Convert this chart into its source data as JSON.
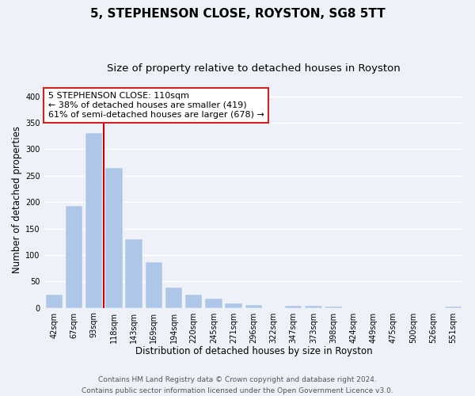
{
  "title": "5, STEPHENSON CLOSE, ROYSTON, SG8 5TT",
  "subtitle": "Size of property relative to detached houses in Royston",
  "xlabel": "Distribution of detached houses by size in Royston",
  "ylabel": "Number of detached properties",
  "bar_labels": [
    "42sqm",
    "67sqm",
    "93sqm",
    "118sqm",
    "143sqm",
    "169sqm",
    "194sqm",
    "220sqm",
    "245sqm",
    "271sqm",
    "296sqm",
    "322sqm",
    "347sqm",
    "373sqm",
    "398sqm",
    "424sqm",
    "449sqm",
    "475sqm",
    "500sqm",
    "526sqm",
    "551sqm"
  ],
  "bar_values": [
    25,
    193,
    330,
    265,
    130,
    87,
    38,
    25,
    18,
    8,
    5,
    0,
    4,
    4,
    3,
    0,
    0,
    0,
    0,
    0,
    3
  ],
  "bar_color": "#aec6e8",
  "bar_edge_color": "#aec6e8",
  "vline_color": "#cc0000",
  "ylim": [
    0,
    410
  ],
  "yticks": [
    0,
    50,
    100,
    150,
    200,
    250,
    300,
    350,
    400
  ],
  "ann_line1": "5 STEPHENSON CLOSE: 110sqm",
  "ann_line2": "← 38% of detached houses are smaller (419)",
  "ann_line3": "61% of semi-detached houses are larger (678) →",
  "footer_line1": "Contains HM Land Registry data © Crown copyright and database right 2024.",
  "footer_line2": "Contains public sector information licensed under the Open Government Licence v3.0.",
  "background_color": "#eef2f8",
  "grid_color": "#ffffff",
  "title_fontsize": 11,
  "subtitle_fontsize": 9.5,
  "axis_label_fontsize": 8.5,
  "tick_fontsize": 7,
  "annotation_fontsize": 8,
  "footer_fontsize": 6.5
}
